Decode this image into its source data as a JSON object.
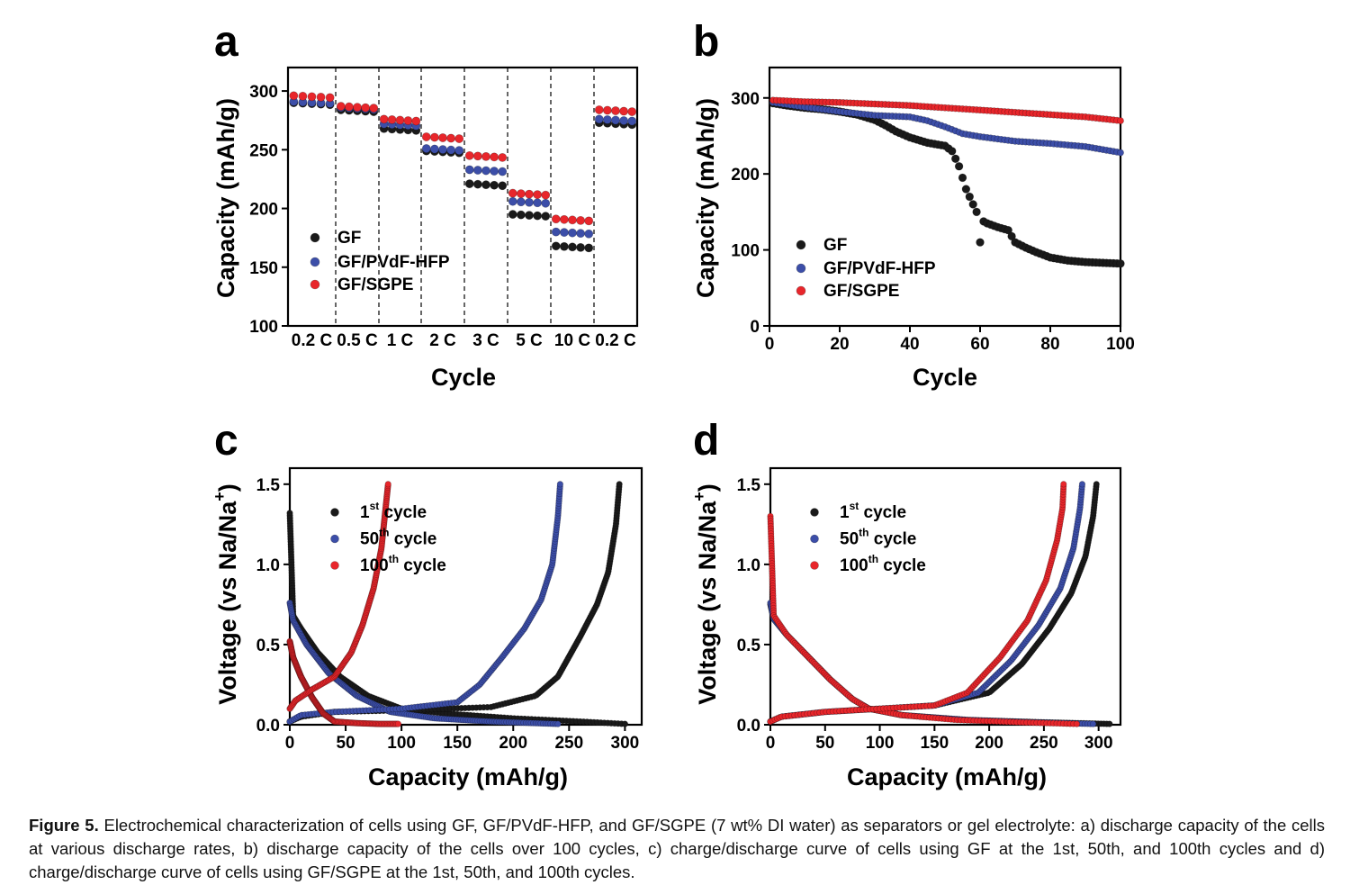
{
  "colors": {
    "black": "#1a1a1a",
    "blue": "#3c4ea8",
    "red": "#e8262b"
  },
  "chart_data": [
    {
      "panel": "a",
      "type": "scatter",
      "xlabel": "Cycle",
      "ylabel": "Capacity (mAh/g)",
      "ylim": [
        100,
        320
      ],
      "yticks": [
        100,
        150,
        200,
        250,
        300
      ],
      "categories": [
        "0.2 C",
        "0.5 C",
        "1 C",
        "2 C",
        "3 C",
        "5 C",
        "10 C",
        "0.2 C"
      ],
      "points_per_rate": 5,
      "series": [
        {
          "name": "GF",
          "color_key": "black",
          "values": [
            290,
            284,
            268,
            249,
            221,
            195,
            168,
            273
          ]
        },
        {
          "name": "GF/PVdF-HFP",
          "color_key": "blue",
          "values": [
            291,
            286,
            272,
            251,
            233,
            206,
            180,
            276
          ]
        },
        {
          "name": "GF/SGPE",
          "color_key": "red",
          "values": [
            296,
            287,
            276,
            261,
            245,
            213,
            191,
            284
          ]
        }
      ]
    },
    {
      "panel": "b",
      "type": "scatter",
      "xlabel": "Cycle",
      "ylabel": "Capacity (mAh/g)",
      "xlim": [
        0,
        100
      ],
      "ylim": [
        0,
        340
      ],
      "xticks": [
        0,
        20,
        40,
        60,
        80,
        100
      ],
      "yticks": [
        0,
        100,
        200,
        300
      ],
      "series": [
        {
          "name": "GF",
          "color_key": "black",
          "x": [
            1,
            5,
            10,
            15,
            20,
            25,
            30,
            33,
            36,
            40,
            45,
            50,
            52,
            54,
            56,
            58,
            60,
            62,
            65,
            68,
            70,
            73,
            76,
            80,
            85,
            90,
            95,
            100
          ],
          "y": [
            293,
            290,
            287,
            285,
            282,
            278,
            271,
            264,
            256,
            248,
            241,
            237,
            230,
            210,
            180,
            160,
            140,
            135,
            130,
            126,
            110,
            103,
            97,
            90,
            86,
            84,
            83,
            82
          ]
        },
        {
          "name": "GF/PVdF-HFP",
          "color_key": "blue",
          "x": [
            1,
            10,
            20,
            30,
            40,
            45,
            50,
            55,
            60,
            70,
            80,
            90,
            100
          ],
          "y": [
            294,
            288,
            282,
            277,
            275,
            270,
            262,
            253,
            249,
            243,
            240,
            236,
            228
          ]
        },
        {
          "name": "GF/SGPE",
          "color_key": "red",
          "x": [
            1,
            10,
            20,
            30,
            40,
            50,
            60,
            70,
            80,
            90,
            100
          ],
          "y": [
            297,
            295,
            294,
            292,
            290,
            287,
            284,
            281,
            278,
            275,
            270
          ]
        }
      ]
    },
    {
      "panel": "c",
      "type": "scatter",
      "xlabel": "Capacity (mAh/g)",
      "ylabel": "Voltage (vs Na/Na+)",
      "ylabel_parts": [
        "Voltage (vs Na/Na",
        "+",
        ")"
      ],
      "xlim": [
        0,
        315
      ],
      "ylim": [
        0,
        1.6
      ],
      "xticks": [
        0,
        50,
        100,
        150,
        200,
        250,
        300
      ],
      "yticks": [
        0.0,
        0.5,
        1.0,
        1.5
      ],
      "ytick_labels": [
        "0.0",
        "0.5",
        "1.0",
        "1.5"
      ],
      "series": [
        {
          "name": "1st cycle",
          "name_parts": [
            "1",
            "st",
            " cycle"
          ],
          "color_key": "black",
          "discharge": {
            "x": [
              0,
              3,
              10,
              25,
              45,
              70,
              100,
              140,
              200,
              260,
              300
            ],
            "y": [
              1.32,
              0.68,
              0.6,
              0.45,
              0.3,
              0.18,
              0.1,
              0.07,
              0.04,
              0.02,
              0.005
            ]
          },
          "charge": {
            "x": [
              0,
              10,
              40,
              100,
              180,
              220,
              240,
              260,
              275,
              285,
              292,
              295
            ],
            "y": [
              0.02,
              0.05,
              0.08,
              0.09,
              0.11,
              0.18,
              0.3,
              0.55,
              0.75,
              0.95,
              1.25,
              1.5
            ]
          }
        },
        {
          "name": "50th cycle",
          "name_parts": [
            "50",
            "th",
            " cycle"
          ],
          "color_key": "blue",
          "discharge": {
            "x": [
              0,
              3,
              15,
              35,
              60,
              90,
              130,
              180,
              240
            ],
            "y": [
              0.76,
              0.65,
              0.5,
              0.32,
              0.18,
              0.08,
              0.04,
              0.02,
              0.005
            ]
          },
          "charge": {
            "x": [
              0,
              10,
              40,
              100,
              150,
              170,
              190,
              210,
              225,
              235,
              240,
              242
            ],
            "y": [
              0.02,
              0.06,
              0.08,
              0.1,
              0.14,
              0.25,
              0.42,
              0.6,
              0.78,
              1.0,
              1.3,
              1.5
            ]
          }
        },
        {
          "name": "100th cycle",
          "name_parts": [
            "100",
            "th",
            " cycle"
          ],
          "color_key": "red",
          "discharge": {
            "x": [
              0,
              3,
              10,
              20,
              30,
              40,
              60,
              80,
              97
            ],
            "y": [
              0.52,
              0.42,
              0.3,
              0.17,
              0.07,
              0.02,
              0.01,
              0.005,
              0.005
            ]
          },
          "charge": {
            "x": [
              0,
              5,
              20,
              40,
              55,
              65,
              75,
              82,
              88
            ],
            "y": [
              0.1,
              0.15,
              0.22,
              0.3,
              0.45,
              0.62,
              0.85,
              1.1,
              1.5
            ]
          }
        }
      ]
    },
    {
      "panel": "d",
      "type": "scatter",
      "xlabel": "Capacity (mAh/g)",
      "ylabel": "Voltage (vs Na/Na+)",
      "ylabel_parts": [
        "Voltage (vs Na/Na",
        "+",
        ")"
      ],
      "xlim": [
        0,
        320
      ],
      "ylim": [
        0,
        1.6
      ],
      "xticks": [
        0,
        50,
        100,
        150,
        200,
        250,
        300
      ],
      "yticks": [
        0.0,
        0.5,
        1.0,
        1.5
      ],
      "ytick_labels": [
        "0.0",
        "0.5",
        "1.0",
        "1.5"
      ],
      "series": [
        {
          "name": "1st cycle",
          "name_parts": [
            "1",
            "st",
            " cycle"
          ],
          "color_key": "black",
          "discharge": {
            "x": [
              0,
              3,
              15,
              35,
              55,
              75,
              90,
              120,
              180,
              250,
              310
            ],
            "y": [
              0.75,
              0.66,
              0.56,
              0.42,
              0.28,
              0.16,
              0.1,
              0.06,
              0.03,
              0.015,
              0.005
            ]
          },
          "charge": {
            "x": [
              0,
              10,
              50,
              100,
              150,
              200,
              230,
              255,
              275,
              288,
              295,
              298
            ],
            "y": [
              0.02,
              0.05,
              0.08,
              0.1,
              0.12,
              0.2,
              0.38,
              0.6,
              0.82,
              1.05,
              1.3,
              1.5
            ]
          }
        },
        {
          "name": "50th cycle",
          "name_parts": [
            "50",
            "th",
            " cycle"
          ],
          "color_key": "blue",
          "discharge": {
            "x": [
              0,
              3,
              15,
              35,
              55,
              75,
              90,
              120,
              180,
              240,
              295
            ],
            "y": [
              0.76,
              0.66,
              0.56,
              0.42,
              0.28,
              0.16,
              0.1,
              0.06,
              0.03,
              0.015,
              0.005
            ]
          },
          "charge": {
            "x": [
              0,
              10,
              50,
              100,
              150,
              190,
              220,
              245,
              265,
              277,
              283,
              285
            ],
            "y": [
              0.02,
              0.05,
              0.08,
              0.1,
              0.12,
              0.2,
              0.4,
              0.62,
              0.85,
              1.1,
              1.35,
              1.5
            ]
          }
        },
        {
          "name": "100th cycle",
          "name_parts": [
            "100",
            "th",
            " cycle"
          ],
          "color_key": "red",
          "discharge": {
            "x": [
              0,
              3,
              15,
              35,
              55,
              75,
              90,
              120,
              170,
              230,
              280
            ],
            "y": [
              1.3,
              0.68,
              0.56,
              0.42,
              0.28,
              0.16,
              0.1,
              0.06,
              0.03,
              0.015,
              0.005
            ]
          },
          "charge": {
            "x": [
              0,
              10,
              50,
              100,
              150,
              180,
              210,
              235,
              252,
              262,
              267,
              268
            ],
            "y": [
              0.02,
              0.05,
              0.08,
              0.1,
              0.12,
              0.2,
              0.42,
              0.65,
              0.9,
              1.15,
              1.35,
              1.5
            ]
          }
        }
      ]
    }
  ],
  "caption": {
    "label": "Figure 5.",
    "text": "Electrochemical characterization of cells using GF, GF/PVdF-HFP, and GF/SGPE (7 wt% DI water) as separators or gel electrolyte: a) discharge capacity of the cells at various discharge rates, b) discharge capacity of the cells over 100 cycles, c) charge/discharge curve of cells using GF at the 1st, 50th, and 100th cycles and d) charge/discharge curve of cells using GF/SGPE at the 1st, 50th, and 100th cycles."
  }
}
